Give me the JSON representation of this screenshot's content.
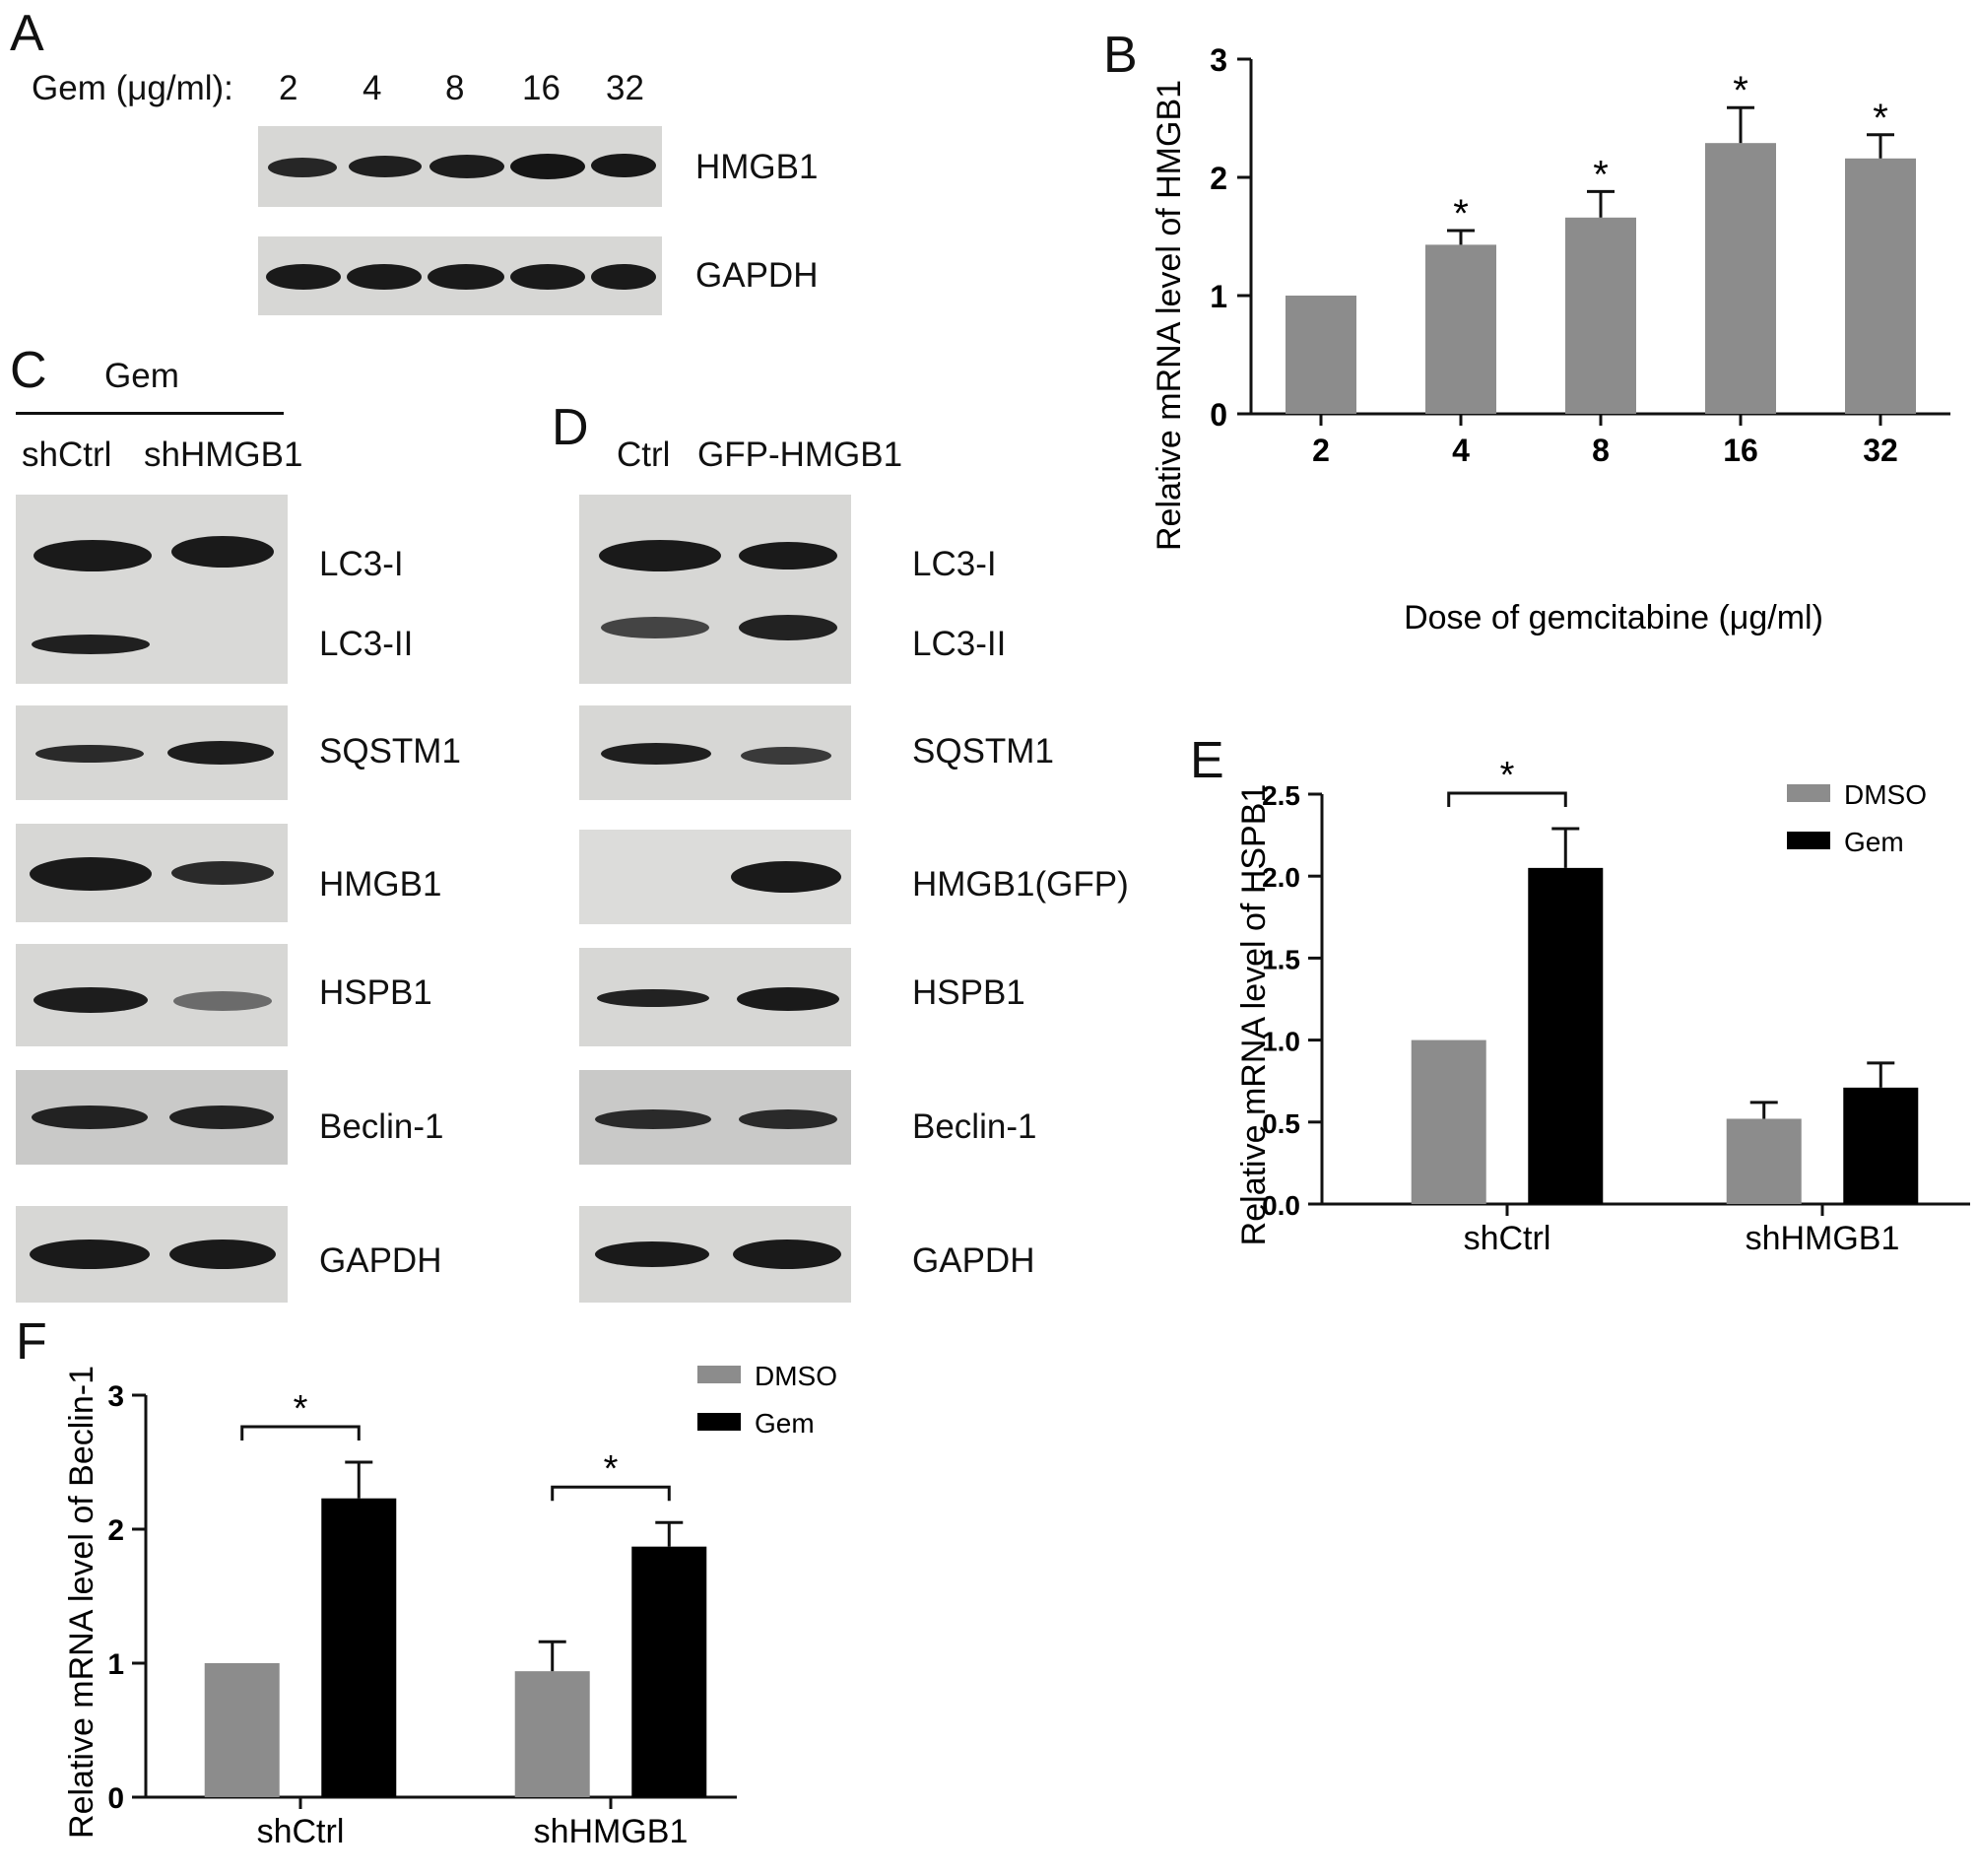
{
  "panels": {
    "a": "A",
    "b": "B",
    "c": "C",
    "d": "D",
    "e": "E",
    "f": "F"
  },
  "panel_a": {
    "gem_label": "Gem (μg/ml):",
    "doses": [
      "2",
      "4",
      "8",
      "16",
      "32"
    ],
    "rows": [
      "HMGB1",
      "GAPDH"
    ]
  },
  "panel_c": {
    "gem_label": "Gem",
    "columns": [
      "shCtrl",
      "shHMGB1"
    ],
    "rows": [
      "LC3-I",
      "LC3-II",
      "SQSTM1",
      "HMGB1",
      "HSPB1",
      "Beclin-1",
      "GAPDH"
    ]
  },
  "panel_d": {
    "columns": [
      "Ctrl",
      "GFP-HMGB1"
    ],
    "rows": [
      "LC3-I",
      "LC3-II",
      "SQSTM1",
      "HMGB1(GFP)",
      "HSPB1",
      "Beclin-1",
      "GAPDH"
    ]
  },
  "colors": {
    "dmso": "#8c8c8c",
    "gem": "#000000",
    "bar_b": "#8c8c8c"
  },
  "chart_data": [
    {
      "id": "B",
      "type": "bar",
      "categories": [
        "2",
        "4",
        "8",
        "16",
        "32"
      ],
      "values": [
        1.0,
        1.43,
        1.66,
        2.29,
        2.16
      ],
      "errors": [
        0,
        0.12,
        0.22,
        0.3,
        0.2
      ],
      "significant": [
        false,
        true,
        true,
        true,
        true
      ],
      "xlabel": "Dose of gemcitabine (μg/ml)",
      "ylabel": "Relative mRNA level of HMGB1",
      "ylim": [
        0,
        3
      ],
      "yticks": [
        "0",
        "1",
        "2",
        "3"
      ],
      "star": "*"
    },
    {
      "id": "E",
      "type": "bar",
      "categories": [
        "shCtrl",
        "shHMGB1"
      ],
      "series": [
        {
          "name": "DMSO",
          "values": [
            1.0,
            0.52
          ],
          "errors": [
            0,
            0.1
          ]
        },
        {
          "name": "Gem",
          "values": [
            2.05,
            0.71
          ],
          "errors": [
            0.24,
            0.15
          ]
        }
      ],
      "ylabel": "Relative mRNA level of HSPB1",
      "ylim": [
        0,
        2.5
      ],
      "yticks": [
        "0.0",
        "0.5",
        "1.0",
        "1.5",
        "2.0",
        "2.5"
      ],
      "significance": [
        {
          "category": "shCtrl",
          "label": "*"
        }
      ],
      "legend": "top-right"
    },
    {
      "id": "F",
      "type": "bar",
      "categories": [
        "shCtrl",
        "shHMGB1"
      ],
      "series": [
        {
          "name": "DMSO",
          "values": [
            1.0,
            0.94
          ],
          "errors": [
            0,
            0.22
          ]
        },
        {
          "name": "Gem",
          "values": [
            2.23,
            1.87
          ],
          "errors": [
            0.27,
            0.18
          ]
        }
      ],
      "ylabel": "Relative mRNA level of Beclin-1",
      "ylim": [
        0,
        3
      ],
      "yticks": [
        "0",
        "1",
        "2",
        "3"
      ],
      "significance": [
        {
          "category": "shCtrl",
          "label": "*"
        },
        {
          "category": "shHMGB1",
          "label": "*"
        }
      ],
      "legend": "top-right"
    }
  ]
}
